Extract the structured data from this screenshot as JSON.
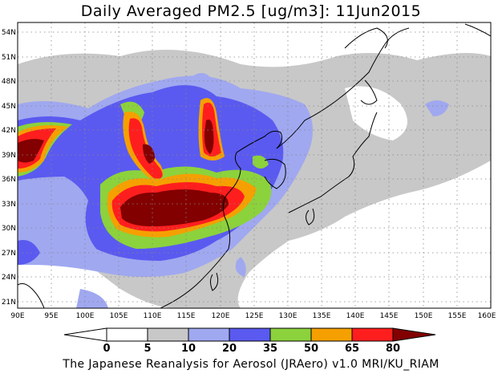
{
  "title": "Daily Averaged PM2.5 [ug/m3]: 11Jun2015",
  "footer": "The Japanese Reanalysis for Aerosol (JRAero) v1.0 MRI/KU_RIAM",
  "map": {
    "lon_range": [
      90,
      160
    ],
    "lat_range": [
      20,
      55
    ],
    "lon_ticks": [
      "90E",
      "95E",
      "100E",
      "105E",
      "110E",
      "115E",
      "120E",
      "125E",
      "130E",
      "135E",
      "140E",
      "145E",
      "150E",
      "155E",
      "160E"
    ],
    "lat_ticks": [
      "54N",
      "51N",
      "48N",
      "45N",
      "42N",
      "39N",
      "36N",
      "33N",
      "30N",
      "27N",
      "24N",
      "21N"
    ],
    "grid": true
  },
  "legend": {
    "levels": [
      "0",
      "5",
      "10",
      "20",
      "35",
      "50",
      "65",
      "80"
    ],
    "colors": [
      "#ffffff",
      "#c8c8c8",
      "#a0a8f0",
      "#5a5af0",
      "#8cd23c",
      "#f5a000",
      "#ff1e1e",
      "#820000"
    ]
  }
}
